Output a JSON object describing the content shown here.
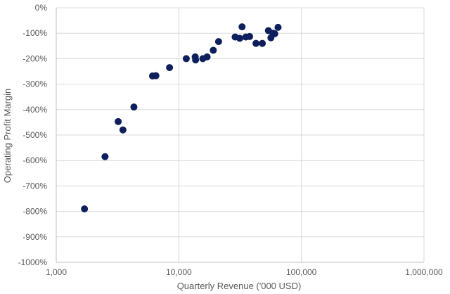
{
  "chart_data": {
    "type": "scatter",
    "xlabel": "Quarterly Revenue ('000 USD)",
    "ylabel": "Operating Profit Margin",
    "x_scale": "log",
    "xlim": [
      1000,
      1000000
    ],
    "ylim": [
      -1000,
      0
    ],
    "x_ticks": [
      1000,
      10000,
      100000,
      1000000
    ],
    "x_tick_labels": [
      "1,000",
      "10,000",
      "100,000",
      "1,000,000"
    ],
    "y_ticks": [
      0,
      -100,
      -200,
      -300,
      -400,
      -500,
      -600,
      -700,
      -800,
      -900,
      -1000
    ],
    "y_tick_labels": [
      "0%",
      "-100%",
      "-200%",
      "-300%",
      "-400%",
      "-500%",
      "-600%",
      "-700%",
      "-800%",
      "-900%",
      "-1000%"
    ],
    "grid": true,
    "marker_color": "#0d1f5c",
    "points": [
      {
        "x": 1700,
        "y": -790
      },
      {
        "x": 2500,
        "y": -585
      },
      {
        "x": 3200,
        "y": -447
      },
      {
        "x": 3500,
        "y": -480
      },
      {
        "x": 4300,
        "y": -390
      },
      {
        "x": 6100,
        "y": -268
      },
      {
        "x": 6500,
        "y": -267
      },
      {
        "x": 8400,
        "y": -235
      },
      {
        "x": 11500,
        "y": -200
      },
      {
        "x": 13600,
        "y": -193
      },
      {
        "x": 13700,
        "y": -205
      },
      {
        "x": 15700,
        "y": -200
      },
      {
        "x": 17000,
        "y": -193
      },
      {
        "x": 19100,
        "y": -167
      },
      {
        "x": 21100,
        "y": -133
      },
      {
        "x": 28800,
        "y": -115
      },
      {
        "x": 31400,
        "y": -120
      },
      {
        "x": 32800,
        "y": -75
      },
      {
        "x": 35200,
        "y": -115
      },
      {
        "x": 37800,
        "y": -113
      },
      {
        "x": 42600,
        "y": -140
      },
      {
        "x": 48000,
        "y": -140
      },
      {
        "x": 53800,
        "y": -90
      },
      {
        "x": 56400,
        "y": -118
      },
      {
        "x": 58800,
        "y": -100
      },
      {
        "x": 60600,
        "y": -102
      },
      {
        "x": 64500,
        "y": -77
      }
    ]
  }
}
